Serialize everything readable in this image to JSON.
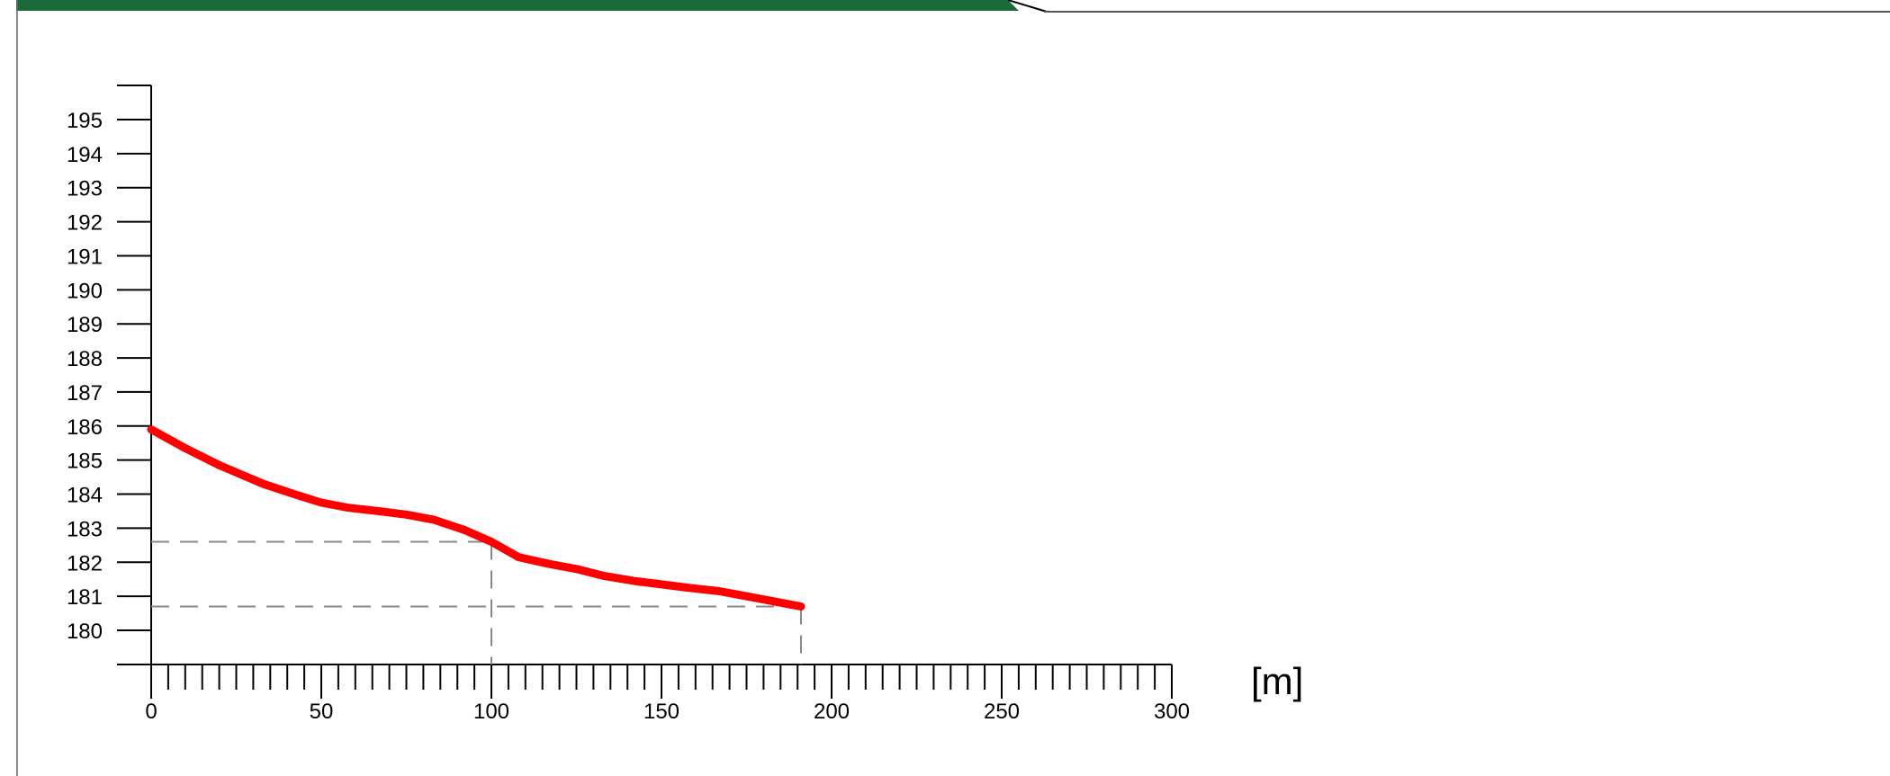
{
  "header": {
    "bar_color": "#1b6b3a",
    "line_color": "#555555"
  },
  "chart_data": {
    "type": "line",
    "title": "",
    "xlabel": "",
    "ylabel": "",
    "x_unit_label": "[m]",
    "xlim": [
      0,
      300
    ],
    "ylim": [
      179,
      196
    ],
    "x_major_ticks": [
      0,
      50,
      100,
      150,
      200,
      250,
      300
    ],
    "x_minor_tick_step": 5,
    "y_ticks": [
      180,
      181,
      182,
      183,
      184,
      185,
      186,
      187,
      188,
      189,
      190,
      191,
      192,
      193,
      194,
      195
    ],
    "grid": false,
    "series": [
      {
        "color": "#ff0000",
        "x": [
          0,
          10,
          20,
          33,
          42,
          50,
          58,
          67,
          75,
          83,
          92,
          100,
          108,
          117,
          125,
          133,
          142,
          150,
          158,
          167,
          175,
          183,
          191
        ],
        "y": [
          185.9,
          185.35,
          184.85,
          184.3,
          184.0,
          183.75,
          183.6,
          183.5,
          183.4,
          183.25,
          182.95,
          182.6,
          182.15,
          181.95,
          181.8,
          181.6,
          181.45,
          181.35,
          181.25,
          181.15,
          181.0,
          180.85,
          180.7
        ]
      }
    ],
    "reference_lines": [
      {
        "x": 100,
        "y": 182.6,
        "color": "#888888"
      },
      {
        "x": 191,
        "y": 180.7,
        "color": "#888888"
      }
    ]
  }
}
